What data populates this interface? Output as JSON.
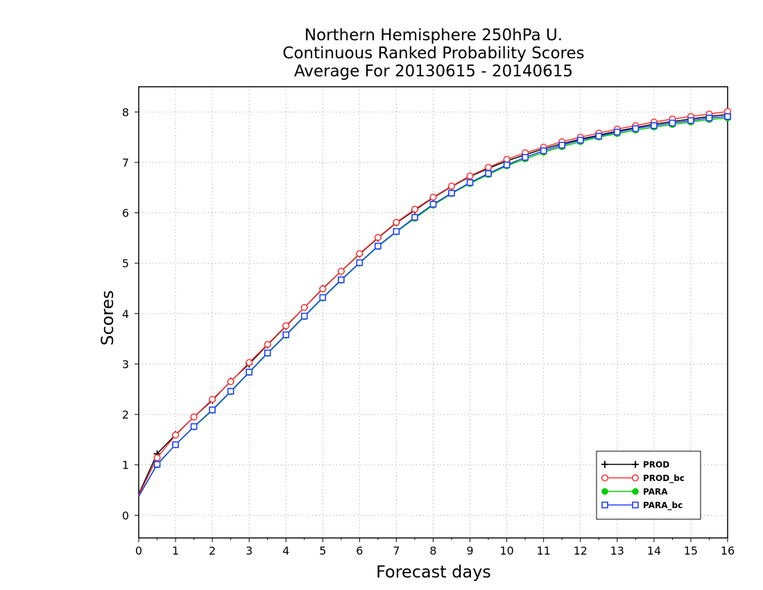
{
  "chart_data": {
    "type": "line",
    "title": [
      "Northern Hemisphere 250hPa U.",
      "Continuous Ranked Probability Scores",
      "Average For 20130615 - 20140615"
    ],
    "xlabel": "Forecast days",
    "ylabel": "Scores",
    "xlim": [
      0,
      16
    ],
    "ylim": [
      -0.45,
      8.5
    ],
    "xticks": [
      "0",
      "1",
      "2",
      "3",
      "4",
      "5",
      "6",
      "7",
      "8",
      "9",
      "10",
      "11",
      "12",
      "13",
      "14",
      "15",
      "16"
    ],
    "yticks": [
      "0",
      "1",
      "2",
      "3",
      "4",
      "5",
      "6",
      "7",
      "8"
    ],
    "grid": true,
    "legend_position": "bottom-right",
    "x": [
      0,
      0.5,
      1,
      1.5,
      2,
      2.5,
      3,
      3.5,
      4,
      4.5,
      5,
      5.5,
      6,
      6.5,
      7,
      7.5,
      8,
      8.5,
      9,
      9.5,
      10,
      10.5,
      11,
      11.5,
      12,
      12.5,
      13,
      13.5,
      14,
      14.5,
      15,
      15.5,
      16
    ],
    "series": [
      {
        "name": "PROD",
        "color": "#000000",
        "marker": "plus",
        "values": [
          0.42,
          1.22,
          1.6,
          1.95,
          2.28,
          2.66,
          3.0,
          3.38,
          3.75,
          4.12,
          4.5,
          4.84,
          5.18,
          5.5,
          5.8,
          6.05,
          6.3,
          6.52,
          6.72,
          6.88,
          7.03,
          7.15,
          7.27,
          7.37,
          7.46,
          7.54,
          7.62,
          7.69,
          7.76,
          7.81,
          7.86,
          7.91,
          7.95
        ]
      },
      {
        "name": "PROD_bc",
        "color": "#ff3030",
        "marker": "circle",
        "values": [
          0.4,
          1.14,
          1.59,
          1.95,
          2.3,
          2.65,
          3.03,
          3.39,
          3.76,
          4.12,
          4.49,
          4.84,
          5.19,
          5.51,
          5.81,
          6.07,
          6.31,
          6.53,
          6.73,
          6.9,
          7.06,
          7.19,
          7.3,
          7.41,
          7.5,
          7.58,
          7.66,
          7.73,
          7.8,
          7.86,
          7.91,
          7.96,
          8.01
        ]
      },
      {
        "name": "PARA",
        "color": "#00cc00",
        "marker": "dot",
        "values": [
          0.38,
          1.0,
          1.4,
          1.75,
          2.08,
          2.45,
          2.83,
          3.21,
          3.57,
          3.94,
          4.31,
          4.66,
          5.0,
          5.33,
          5.62,
          5.89,
          6.15,
          6.38,
          6.58,
          6.76,
          6.93,
          7.07,
          7.2,
          7.31,
          7.41,
          7.5,
          7.57,
          7.64,
          7.7,
          7.75,
          7.8,
          7.85,
          7.88
        ]
      },
      {
        "name": "PARA_bc",
        "color": "#1a3cff",
        "marker": "square",
        "values": [
          0.37,
          1.01,
          1.4,
          1.76,
          2.09,
          2.46,
          2.84,
          3.22,
          3.58,
          3.95,
          4.32,
          4.67,
          5.01,
          5.34,
          5.63,
          5.91,
          6.17,
          6.39,
          6.6,
          6.78,
          6.95,
          7.1,
          7.23,
          7.34,
          7.44,
          7.52,
          7.6,
          7.67,
          7.73,
          7.78,
          7.83,
          7.88,
          7.91
        ]
      }
    ]
  }
}
